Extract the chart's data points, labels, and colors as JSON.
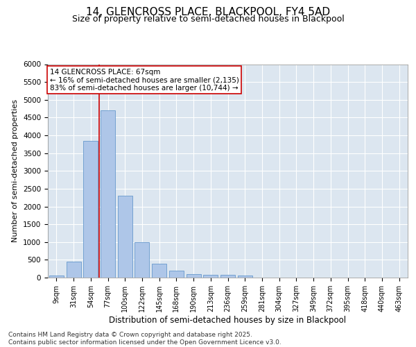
{
  "title": "14, GLENCROSS PLACE, BLACKPOOL, FY4 5AD",
  "subtitle": "Size of property relative to semi-detached houses in Blackpool",
  "xlabel": "Distribution of semi-detached houses by size in Blackpool",
  "ylabel": "Number of semi-detached properties",
  "categories": [
    "9sqm",
    "31sqm",
    "54sqm",
    "77sqm",
    "100sqm",
    "122sqm",
    "145sqm",
    "168sqm",
    "190sqm",
    "213sqm",
    "236sqm",
    "259sqm",
    "281sqm",
    "304sqm",
    "327sqm",
    "349sqm",
    "372sqm",
    "395sqm",
    "418sqm",
    "440sqm",
    "463sqm"
  ],
  "values": [
    50,
    450,
    3850,
    4700,
    2300,
    1000,
    400,
    200,
    100,
    75,
    75,
    50,
    0,
    0,
    0,
    0,
    0,
    0,
    0,
    0,
    0
  ],
  "bar_color": "#aec6e8",
  "bar_edge_color": "#6699cc",
  "background_color": "#dce6f0",
  "grid_color": "#ffffff",
  "property_line_color": "#cc0000",
  "property_line_x": 2.5,
  "property_size": "67sqm",
  "pct_smaller": 16,
  "n_smaller": 2135,
  "pct_larger": 83,
  "n_larger": 10744,
  "annotation_box_facecolor": "#ffffff",
  "annotation_box_edgecolor": "#cc0000",
  "ylim": [
    0,
    6000
  ],
  "yticks": [
    0,
    500,
    1000,
    1500,
    2000,
    2500,
    3000,
    3500,
    4000,
    4500,
    5000,
    5500,
    6000
  ],
  "title_fontsize": 11,
  "subtitle_fontsize": 9,
  "xlabel_fontsize": 8.5,
  "ylabel_fontsize": 8,
  "tick_fontsize": 7.5,
  "annotation_fontsize": 7.5,
  "footer_fontsize": 6.5,
  "footer": "Contains HM Land Registry data © Crown copyright and database right 2025.\nContains public sector information licensed under the Open Government Licence v3.0."
}
